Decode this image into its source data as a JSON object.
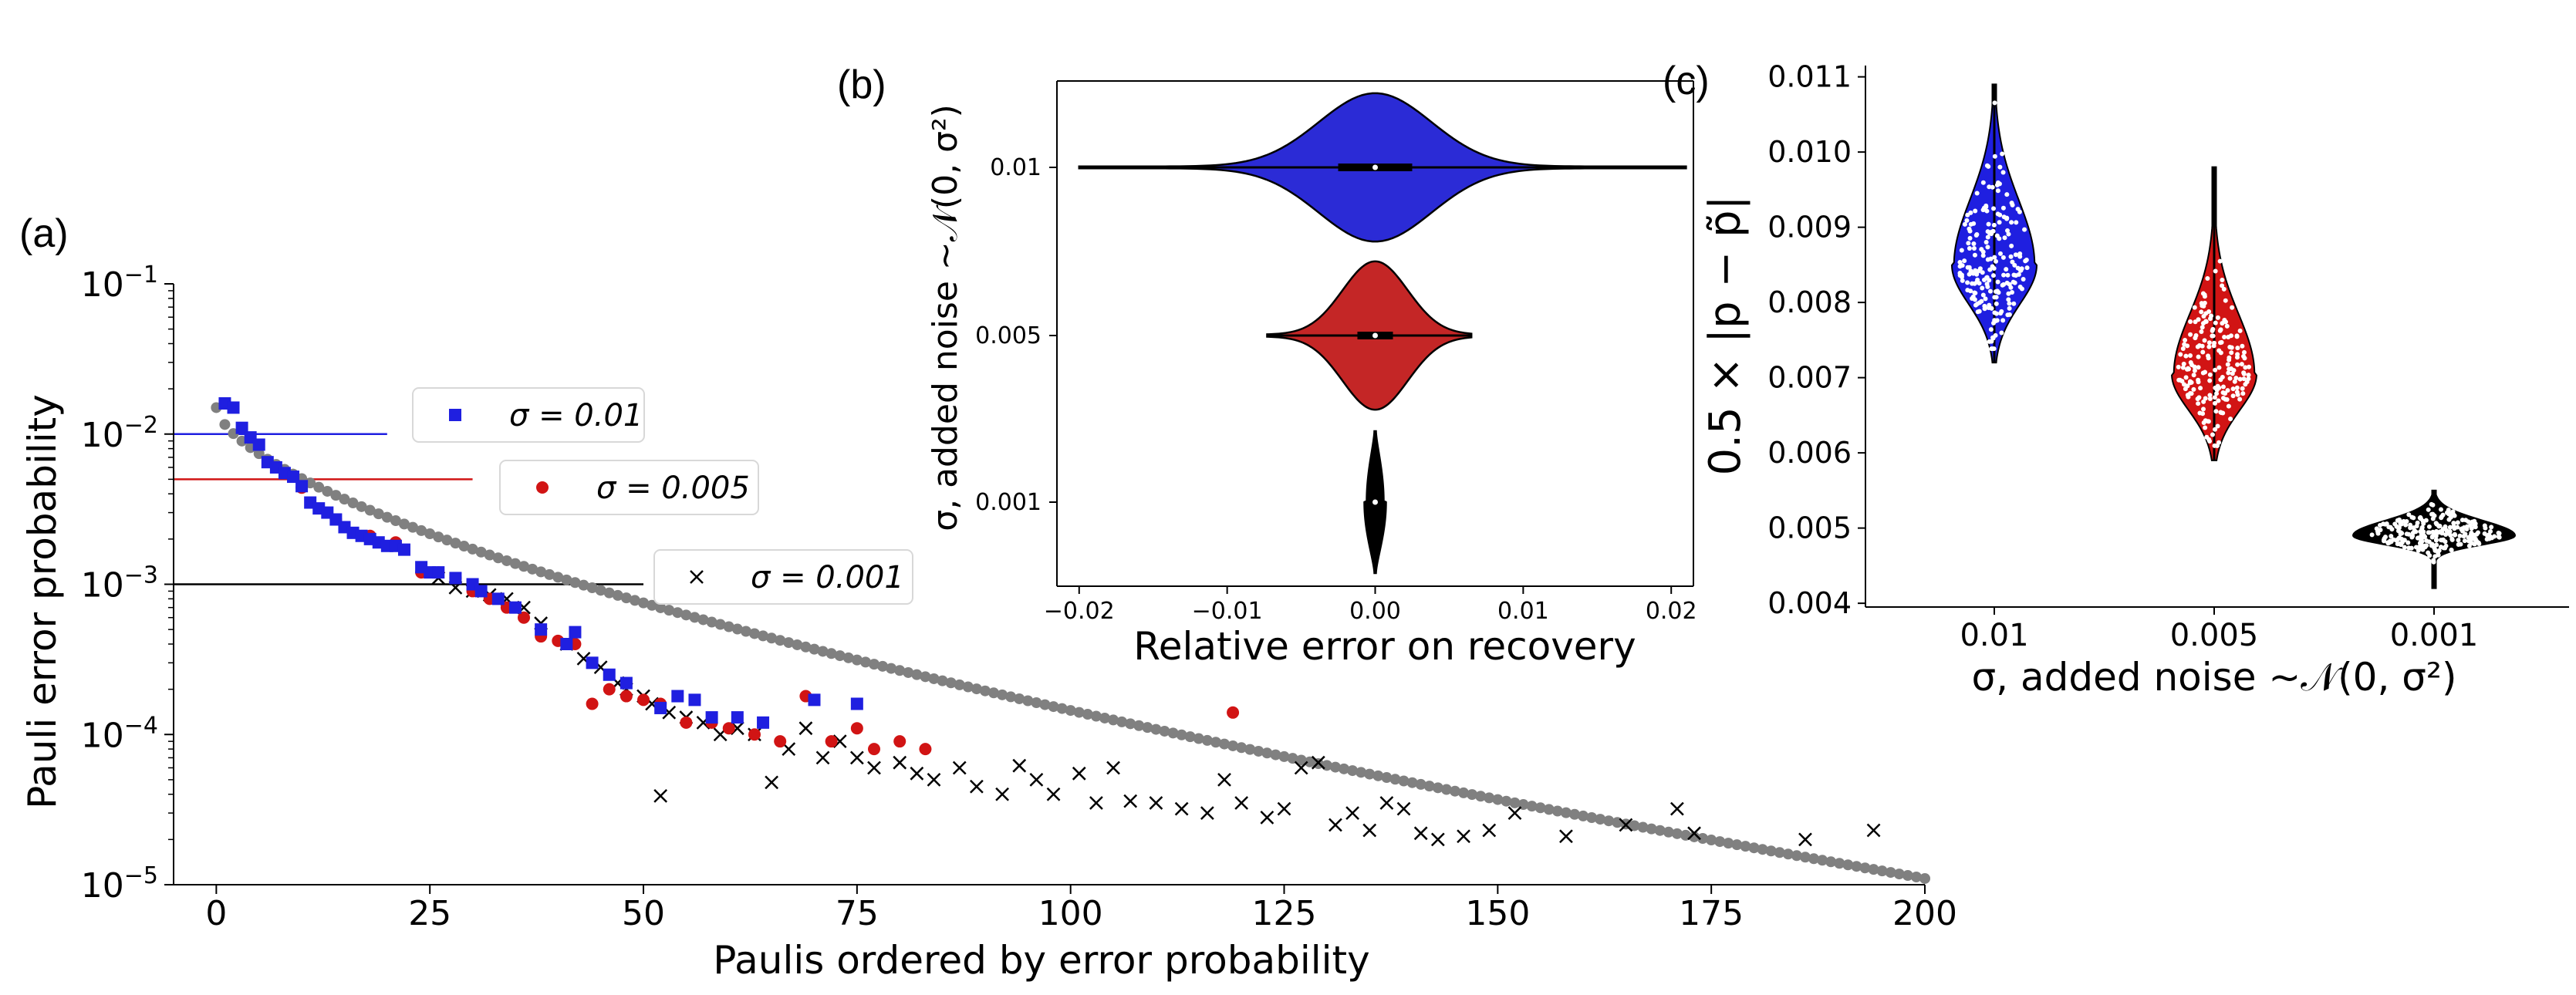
{
  "panels": {
    "a": {
      "label": "(a)"
    },
    "b": {
      "label": "(b)"
    },
    "c": {
      "label": "(c)"
    }
  },
  "colors": {
    "blue": "#1f1fe0",
    "red": "#d11414",
    "black": "#000000",
    "gray": "#808080",
    "violin_blue": "#2b2bd6",
    "violin_red": "#c42626"
  },
  "chart_data": [
    {
      "id": "a",
      "type": "scatter",
      "xlabel": "Paulis ordered by error probability",
      "ylabel": "Pauli error probability",
      "y_scale": "log",
      "xlim": [
        -5,
        200
      ],
      "ylim": [
        1e-05,
        0.1
      ],
      "x_ticks": [
        "0",
        "25",
        "50",
        "75",
        "100",
        "125",
        "150",
        "175",
        "200"
      ],
      "y_ticks": [
        "10^-5",
        "10^-4",
        "10^-3",
        "10^-2",
        "10^-1"
      ],
      "reference_lines": [
        {
          "value": 0.01,
          "x_end": 20,
          "color": "blue"
        },
        {
          "value": 0.005,
          "x_end": 30,
          "color": "red"
        },
        {
          "value": 0.001,
          "x_end": 50,
          "color": "black"
        }
      ],
      "legend": [
        {
          "label": "σ = 0.01",
          "marker": "square",
          "color": "blue"
        },
        {
          "label": "σ = 0.005",
          "marker": "circle",
          "color": "red"
        },
        {
          "label": "σ = 0.001",
          "marker": "x",
          "color": "black"
        }
      ],
      "series": [
        {
          "marker": "dot",
          "color": "gray",
          "curve": "true_ordered_probabilities",
          "x_range": [
            0,
            200
          ],
          "y_start": 0.015,
          "y_end": 1.1e-05
        },
        {
          "name": "σ = 0.01",
          "marker": "square",
          "color": "blue",
          "points": [
            [
              1,
              0.016
            ],
            [
              2,
              0.015
            ],
            [
              3,
              0.011
            ],
            [
              4,
              0.0095
            ],
            [
              5,
              0.0085
            ],
            [
              6,
              0.0065
            ],
            [
              7,
              0.006
            ],
            [
              8,
              0.0055
            ],
            [
              9,
              0.0052
            ],
            [
              10,
              0.0045
            ],
            [
              11,
              0.0035
            ],
            [
              12,
              0.0032
            ],
            [
              13,
              0.003
            ],
            [
              14,
              0.0027
            ],
            [
              15,
              0.0024
            ],
            [
              16,
              0.0022
            ],
            [
              17,
              0.0021
            ],
            [
              18,
              0.002
            ],
            [
              19,
              0.0019
            ],
            [
              20,
              0.0018
            ],
            [
              21,
              0.0018
            ],
            [
              22,
              0.0017
            ],
            [
              24,
              0.0013
            ],
            [
              25,
              0.0012
            ],
            [
              26,
              0.0012
            ],
            [
              28,
              0.0011
            ],
            [
              30,
              0.001
            ],
            [
              31,
              0.0009
            ],
            [
              33,
              0.0008
            ],
            [
              35,
              0.0007
            ],
            [
              38,
              0.0005
            ],
            [
              41,
              0.0004
            ],
            [
              42,
              0.00048
            ],
            [
              44,
              0.0003
            ],
            [
              46,
              0.00025
            ],
            [
              48,
              0.00022
            ],
            [
              52,
              0.00015
            ],
            [
              54,
              0.00018
            ],
            [
              56,
              0.00017
            ],
            [
              58,
              0.00013
            ],
            [
              61,
              0.00013
            ],
            [
              64,
              0.00012
            ],
            [
              70,
              0.00017
            ],
            [
              75,
              0.00016
            ]
          ]
        },
        {
          "name": "σ = 0.005",
          "marker": "circle",
          "color": "red",
          "points": [
            [
              10,
              0.0044
            ],
            [
              14,
              0.0027
            ],
            [
              18,
              0.0021
            ],
            [
              21,
              0.0019
            ],
            [
              24,
              0.0012
            ],
            [
              26,
              0.0012
            ],
            [
              28,
              0.0011
            ],
            [
              30,
              0.0009
            ],
            [
              32,
              0.0008
            ],
            [
              34,
              0.0007
            ],
            [
              36,
              0.0006
            ],
            [
              38,
              0.00045
            ],
            [
              40,
              0.00042
            ],
            [
              42,
              0.0004
            ],
            [
              44,
              0.00016
            ],
            [
              46,
              0.0002
            ],
            [
              48,
              0.00018
            ],
            [
              50,
              0.00017
            ],
            [
              52,
              0.00016
            ],
            [
              55,
              0.00012
            ],
            [
              58,
              0.00012
            ],
            [
              60,
              0.00011
            ],
            [
              63,
              0.0001
            ],
            [
              66,
              9e-05
            ],
            [
              69,
              0.00018
            ],
            [
              72,
              9e-05
            ],
            [
              75,
              0.00011
            ],
            [
              77,
              8e-05
            ],
            [
              80,
              9e-05
            ],
            [
              83,
              8e-05
            ],
            [
              119,
              0.00014
            ]
          ]
        },
        {
          "name": "σ = 0.001",
          "marker": "x",
          "color": "black",
          "points": [
            [
              26,
              0.0011
            ],
            [
              28,
              0.00095
            ],
            [
              30,
              0.0009
            ],
            [
              32,
              0.00085
            ],
            [
              34,
              0.0008
            ],
            [
              36,
              0.0007
            ],
            [
              38,
              0.00055
            ],
            [
              41,
              0.0004
            ],
            [
              43,
              0.00032
            ],
            [
              45,
              0.00028
            ],
            [
              47,
              0.00022
            ],
            [
              48,
              0.0002
            ],
            [
              50,
              0.00018
            ],
            [
              51,
              0.00016
            ],
            [
              52,
              3.9e-05
            ],
            [
              53,
              0.00014
            ],
            [
              55,
              0.00013
            ],
            [
              57,
              0.00012
            ],
            [
              59,
              0.0001
            ],
            [
              61,
              0.00011
            ],
            [
              63,
              0.0001
            ],
            [
              65,
              4.8e-05
            ],
            [
              67,
              8e-05
            ],
            [
              69,
              0.00011
            ],
            [
              71,
              7e-05
            ],
            [
              73,
              9e-05
            ],
            [
              75,
              7e-05
            ],
            [
              77,
              6e-05
            ],
            [
              80,
              6.5e-05
            ],
            [
              82,
              5.5e-05
            ],
            [
              84,
              5e-05
            ],
            [
              87,
              6e-05
            ],
            [
              89,
              4.5e-05
            ],
            [
              92,
              4e-05
            ],
            [
              94,
              6.2e-05
            ],
            [
              96,
              5e-05
            ],
            [
              98,
              4e-05
            ],
            [
              101,
              5.5e-05
            ],
            [
              103,
              3.5e-05
            ],
            [
              105,
              6e-05
            ],
            [
              107,
              3.6e-05
            ],
            [
              110,
              3.5e-05
            ],
            [
              113,
              3.2e-05
            ],
            [
              116,
              3e-05
            ],
            [
              118,
              5e-05
            ],
            [
              120,
              3.5e-05
            ],
            [
              123,
              2.8e-05
            ],
            [
              125,
              3.2e-05
            ],
            [
              127,
              6e-05
            ],
            [
              129,
              6.5e-05
            ],
            [
              131,
              2.5e-05
            ],
            [
              133,
              3e-05
            ],
            [
              135,
              2.3e-05
            ],
            [
              137,
              3.5e-05
            ],
            [
              139,
              3.2e-05
            ],
            [
              141,
              2.2e-05
            ],
            [
              143,
              2e-05
            ],
            [
              146,
              2.1e-05
            ],
            [
              149,
              2.3e-05
            ],
            [
              152,
              3e-05
            ],
            [
              158,
              2.1e-05
            ],
            [
              165,
              2.5e-05
            ],
            [
              171,
              3.2e-05
            ],
            [
              173,
              2.2e-05
            ],
            [
              186,
              2e-05
            ],
            [
              194,
              2.3e-05
            ]
          ]
        }
      ]
    },
    {
      "id": "b",
      "type": "violin",
      "orientation": "horizontal",
      "xlabel": "Relative error on recovery",
      "ylabel": "σ, added noise  ~𝒩(0, σ²)",
      "xlim": [
        -0.02,
        0.02
      ],
      "x_ticks": [
        "−0.02",
        "−0.01",
        "0.00",
        "0.01",
        "0.02"
      ],
      "categories": [
        "0.01",
        "0.005",
        "0.001"
      ],
      "violins": [
        {
          "category": "0.01",
          "color": "violin_blue",
          "range": [
            -0.02,
            0.021
          ],
          "median": 0.0,
          "q1": -0.0025,
          "q3": 0.0025,
          "half_height": 0.0037
        },
        {
          "category": "0.005",
          "color": "violin_red",
          "range": [
            -0.0073,
            0.0065
          ],
          "median": 0.0,
          "q1": -0.0012,
          "q3": 0.0012,
          "half_height": 0.0037
        },
        {
          "category": "0.001",
          "color": "black",
          "range": [
            -0.0014,
            0.0014
          ],
          "median": 0.0,
          "q1": -0.0002,
          "q3": 0.0002,
          "half_height": 0.0037
        }
      ]
    },
    {
      "id": "c",
      "type": "violin",
      "orientation": "vertical",
      "xlabel": "σ, added noise  ~𝒩(0, σ²)",
      "ylabel": "0.5 × |p − p̃|",
      "ylim": [
        0.00395,
        0.01115
      ],
      "y_ticks": [
        "0.004",
        "0.005",
        "0.006",
        "0.007",
        "0.008",
        "0.009",
        "0.010",
        "0.011"
      ],
      "categories": [
        "0.01",
        "0.005",
        "0.001"
      ],
      "violins": [
        {
          "category": "0.01",
          "color": "blue",
          "min": 0.0072,
          "max": 0.0109,
          "center": 0.0085,
          "spread": 0.00052,
          "half_width": 0.4
        },
        {
          "category": "0.005",
          "color": "red",
          "min": 0.0059,
          "max": 0.0098,
          "center": 0.00705,
          "spread": 0.00048,
          "half_width": 0.4
        },
        {
          "category": "0.001",
          "color": "black",
          "min": 0.0042,
          "max": 0.0055,
          "center": 0.0049,
          "spread": 0.00012,
          "half_width": 0.5
        }
      ]
    }
  ]
}
